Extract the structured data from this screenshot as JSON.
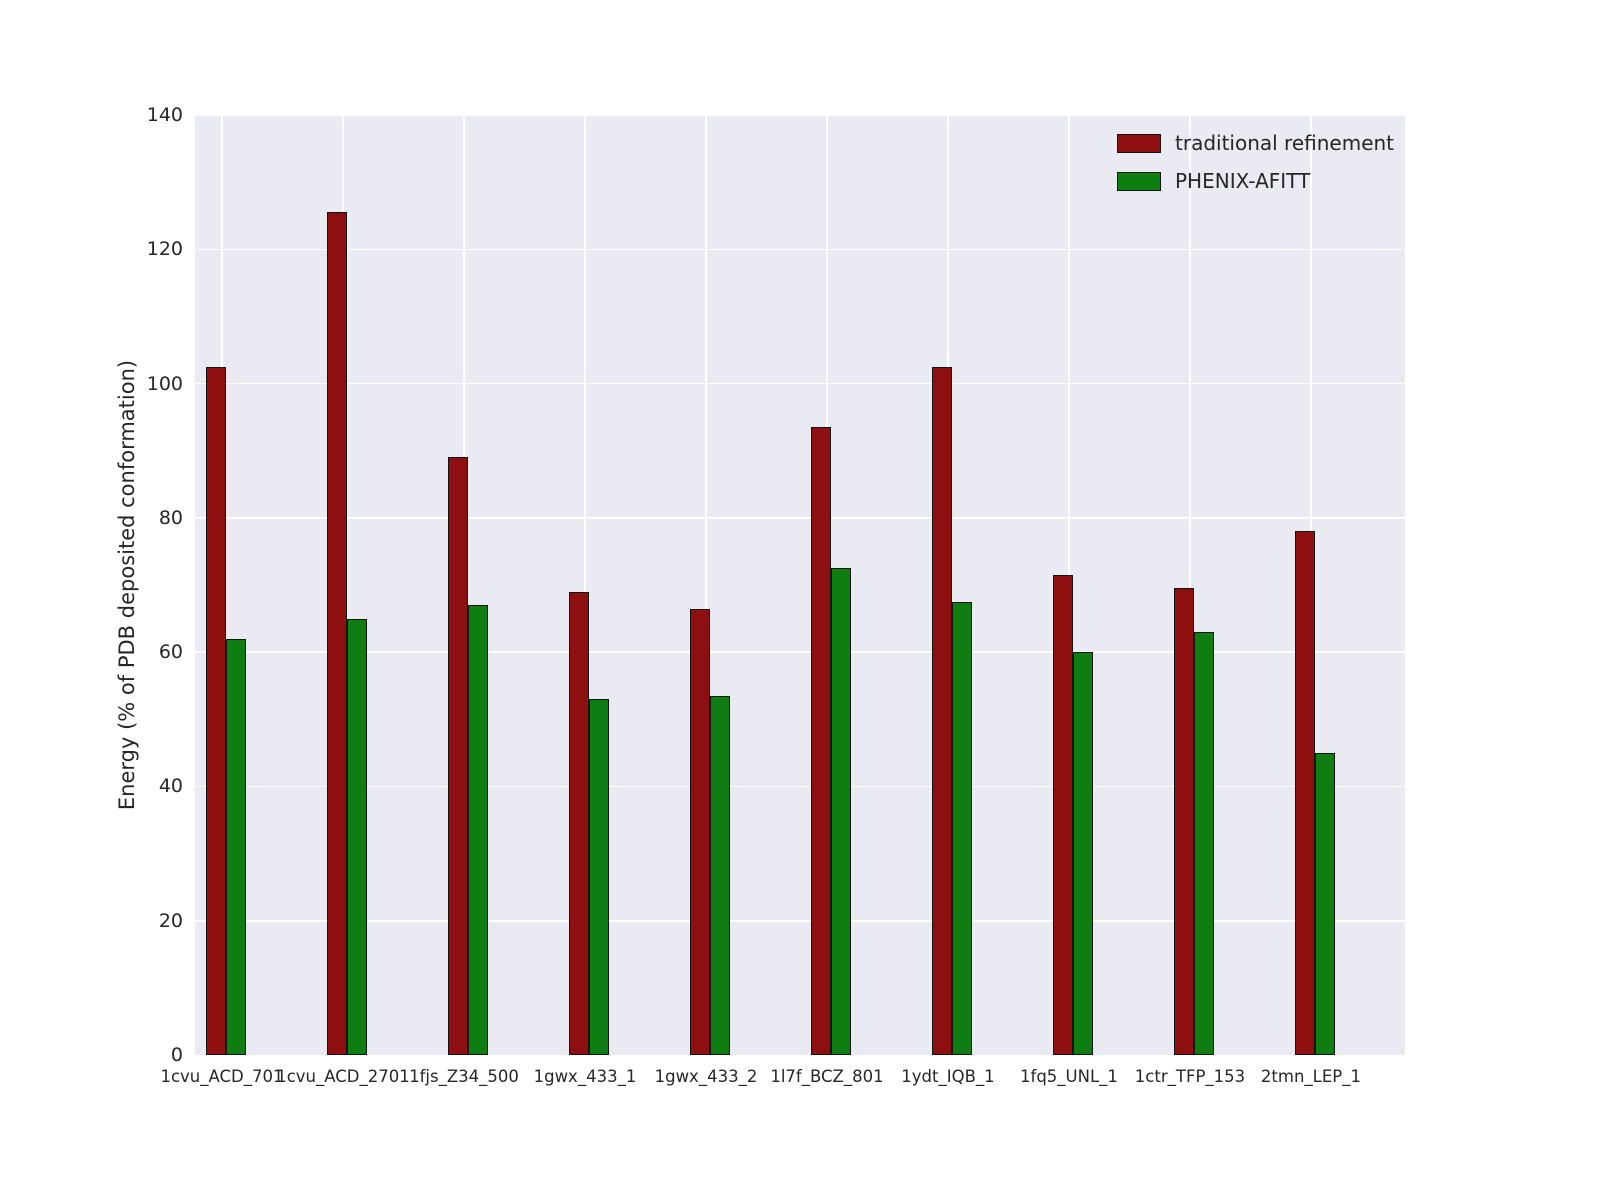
{
  "chart_data": {
    "type": "bar",
    "title": "",
    "xlabel": "",
    "ylabel": "Energy (% of PDB deposited conformation)",
    "ylim": [
      0,
      140
    ],
    "yticks": [
      0,
      20,
      40,
      60,
      80,
      100,
      120,
      140
    ],
    "grid": true,
    "legend_position": "upper right",
    "categories": [
      "1cvu_ACD_701",
      "1cvu_ACD_2701",
      "1fjs_Z34_500",
      "1gwx_433_1",
      "1gwx_433_2",
      "1l7f_BCZ_801",
      "1ydt_IQB_1",
      "1fq5_UNL_1",
      "1ctr_TFP_153",
      "2tmn_LEP_1"
    ],
    "series": [
      {
        "name": "traditional refinement",
        "color": "#8e0f0f",
        "values": [
          102.5,
          125.5,
          89.0,
          69.0,
          66.5,
          93.5,
          102.5,
          71.5,
          69.5,
          78.0
        ]
      },
      {
        "name": "PHENIX-AFITT",
        "color": "#0e7e12",
        "values": [
          62.0,
          65.0,
          67.0,
          53.0,
          53.5,
          72.5,
          67.5,
          60.0,
          63.0,
          45.0
        ]
      }
    ]
  }
}
